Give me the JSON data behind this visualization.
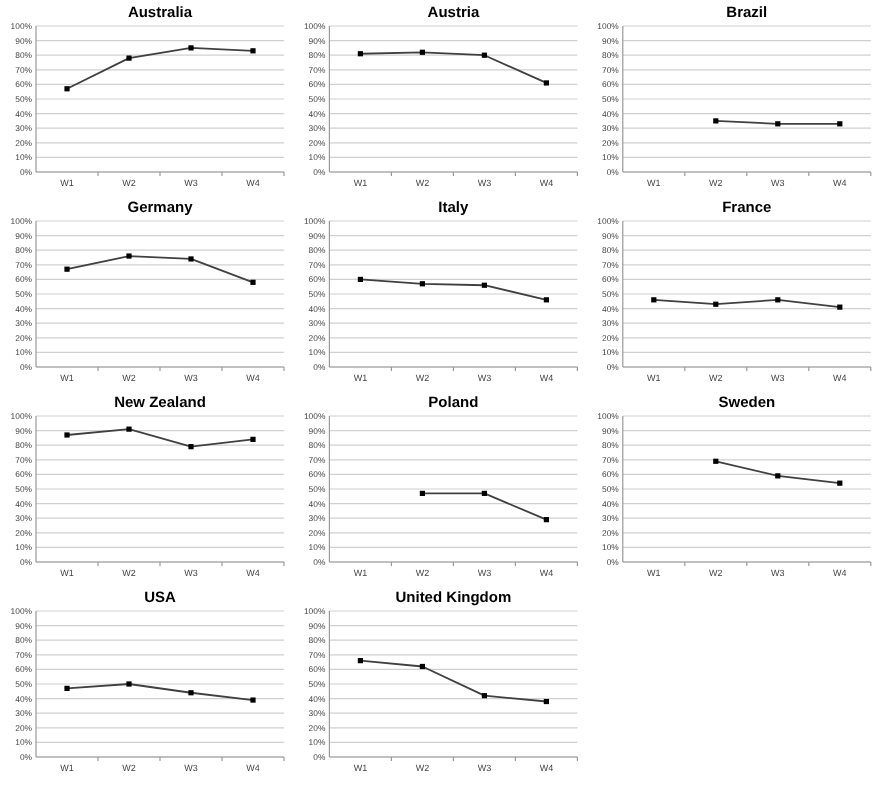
{
  "chart_data": [
    {
      "type": "line",
      "title": "Australia",
      "categories": [
        "W1",
        "W2",
        "W3",
        "W4"
      ],
      "series": [
        {
          "color": "#404040",
          "values": [
            57,
            78,
            85,
            83
          ]
        }
      ],
      "ylim": [
        0,
        100
      ],
      "yticks": [
        {
          "value": 0,
          "label": "0%"
        },
        {
          "value": 10,
          "label": "10%"
        },
        {
          "value": 20,
          "label": "20%"
        },
        {
          "value": 30,
          "label": "30%"
        },
        {
          "value": 40,
          "label": "40%"
        },
        {
          "value": 50,
          "label": "50%"
        },
        {
          "value": 60,
          "label": "60%"
        },
        {
          "value": 70,
          "label": "70%"
        },
        {
          "value": 80,
          "label": "80%"
        },
        {
          "value": 90,
          "label": "90%"
        },
        {
          "value": 100,
          "label": "100%"
        }
      ],
      "grid": "y",
      "marker": "square"
    },
    {
      "type": "line",
      "title": "Austria",
      "categories": [
        "W1",
        "W2",
        "W3",
        "W4"
      ],
      "series": [
        {
          "color": "#404040",
          "values": [
            81,
            82,
            80,
            61
          ]
        }
      ],
      "ylim": [
        0,
        100
      ],
      "yticks": [
        {
          "value": 0,
          "label": "0%"
        },
        {
          "value": 10,
          "label": "10%"
        },
        {
          "value": 20,
          "label": "20%"
        },
        {
          "value": 30,
          "label": "30%"
        },
        {
          "value": 40,
          "label": "40%"
        },
        {
          "value": 50,
          "label": "50%"
        },
        {
          "value": 60,
          "label": "60%"
        },
        {
          "value": 70,
          "label": "70%"
        },
        {
          "value": 80,
          "label": "80%"
        },
        {
          "value": 90,
          "label": "90%"
        },
        {
          "value": 100,
          "label": "100%"
        }
      ],
      "grid": "y",
      "marker": "square"
    },
    {
      "type": "line",
      "title": "Brazil",
      "categories": [
        "W1",
        "W2",
        "W3",
        "W4"
      ],
      "series": [
        {
          "color": "#404040",
          "values": [
            null,
            35,
            33,
            33
          ]
        }
      ],
      "ylim": [
        0,
        100
      ],
      "yticks": [
        {
          "value": 0,
          "label": "0%"
        },
        {
          "value": 10,
          "label": "10%"
        },
        {
          "value": 20,
          "label": "20%"
        },
        {
          "value": 30,
          "label": "30%"
        },
        {
          "value": 40,
          "label": "40%"
        },
        {
          "value": 50,
          "label": "50%"
        },
        {
          "value": 60,
          "label": "60%"
        },
        {
          "value": 70,
          "label": "70%"
        },
        {
          "value": 80,
          "label": "80%"
        },
        {
          "value": 90,
          "label": "90%"
        },
        {
          "value": 100,
          "label": "100%"
        }
      ],
      "grid": "y",
      "marker": "square"
    },
    {
      "type": "line",
      "title": "Germany",
      "categories": [
        "W1",
        "W2",
        "W3",
        "W4"
      ],
      "series": [
        {
          "color": "#404040",
          "values": [
            67,
            76,
            74,
            58
          ]
        }
      ],
      "ylim": [
        0,
        100
      ],
      "yticks": [
        {
          "value": 0,
          "label": "0%"
        },
        {
          "value": 10,
          "label": "10%"
        },
        {
          "value": 20,
          "label": "20%"
        },
        {
          "value": 30,
          "label": "30%"
        },
        {
          "value": 40,
          "label": "40%"
        },
        {
          "value": 50,
          "label": "50%"
        },
        {
          "value": 60,
          "label": "60%"
        },
        {
          "value": 70,
          "label": "70%"
        },
        {
          "value": 80,
          "label": "80%"
        },
        {
          "value": 90,
          "label": "90%"
        },
        {
          "value": 100,
          "label": "100%"
        }
      ],
      "grid": "y",
      "marker": "square"
    },
    {
      "type": "line",
      "title": "Italy",
      "categories": [
        "W1",
        "W2",
        "W3",
        "W4"
      ],
      "series": [
        {
          "color": "#404040",
          "values": [
            60,
            57,
            56,
            46
          ]
        }
      ],
      "ylim": [
        0,
        100
      ],
      "yticks": [
        {
          "value": 0,
          "label": "0%"
        },
        {
          "value": 10,
          "label": "10%"
        },
        {
          "value": 20,
          "label": "20%"
        },
        {
          "value": 30,
          "label": "30%"
        },
        {
          "value": 40,
          "label": "40%"
        },
        {
          "value": 50,
          "label": "50%"
        },
        {
          "value": 60,
          "label": "60%"
        },
        {
          "value": 70,
          "label": "70%"
        },
        {
          "value": 80,
          "label": "80%"
        },
        {
          "value": 90,
          "label": "90%"
        },
        {
          "value": 100,
          "label": "100%"
        }
      ],
      "grid": "y",
      "marker": "square"
    },
    {
      "type": "line",
      "title": "France",
      "categories": [
        "W1",
        "W2",
        "W3",
        "W4"
      ],
      "series": [
        {
          "color": "#404040",
          "values": [
            46,
            43,
            46,
            41
          ]
        }
      ],
      "ylim": [
        0,
        100
      ],
      "yticks": [
        {
          "value": 0,
          "label": "0%"
        },
        {
          "value": 10,
          "label": "10%"
        },
        {
          "value": 20,
          "label": "20%"
        },
        {
          "value": 30,
          "label": "30%"
        },
        {
          "value": 40,
          "label": "40%"
        },
        {
          "value": 50,
          "label": "50%"
        },
        {
          "value": 60,
          "label": "60%"
        },
        {
          "value": 70,
          "label": "70%"
        },
        {
          "value": 80,
          "label": "80%"
        },
        {
          "value": 90,
          "label": "90%"
        },
        {
          "value": 100,
          "label": "100%"
        }
      ],
      "grid": "y",
      "marker": "square"
    },
    {
      "type": "line",
      "title": "New Zealand",
      "categories": [
        "W1",
        "W2",
        "W3",
        "W4"
      ],
      "series": [
        {
          "color": "#404040",
          "values": [
            87,
            91,
            79,
            84
          ]
        }
      ],
      "ylim": [
        0,
        100
      ],
      "yticks": [
        {
          "value": 0,
          "label": "0%"
        },
        {
          "value": 10,
          "label": "10%"
        },
        {
          "value": 20,
          "label": "20%"
        },
        {
          "value": 30,
          "label": "30%"
        },
        {
          "value": 40,
          "label": "40%"
        },
        {
          "value": 50,
          "label": "50%"
        },
        {
          "value": 60,
          "label": "60%"
        },
        {
          "value": 70,
          "label": "70%"
        },
        {
          "value": 80,
          "label": "80%"
        },
        {
          "value": 90,
          "label": "90%"
        },
        {
          "value": 100,
          "label": "100%"
        }
      ],
      "grid": "y",
      "marker": "square"
    },
    {
      "type": "line",
      "title": "Poland",
      "categories": [
        "W1",
        "W2",
        "W3",
        "W4"
      ],
      "series": [
        {
          "color": "#404040",
          "values": [
            null,
            47,
            47,
            29
          ]
        }
      ],
      "ylim": [
        0,
        100
      ],
      "yticks": [
        {
          "value": 0,
          "label": "0%"
        },
        {
          "value": 10,
          "label": "10%"
        },
        {
          "value": 20,
          "label": "20%"
        },
        {
          "value": 30,
          "label": "30%"
        },
        {
          "value": 40,
          "label": "40%"
        },
        {
          "value": 50,
          "label": "50%"
        },
        {
          "value": 60,
          "label": "60%"
        },
        {
          "value": 70,
          "label": "70%"
        },
        {
          "value": 80,
          "label": "80%"
        },
        {
          "value": 90,
          "label": "90%"
        },
        {
          "value": 100,
          "label": "100%"
        }
      ],
      "grid": "y",
      "marker": "square"
    },
    {
      "type": "line",
      "title": "Sweden",
      "categories": [
        "W1",
        "W2",
        "W3",
        "W4"
      ],
      "series": [
        {
          "color": "#404040",
          "values": [
            null,
            69,
            59,
            54
          ]
        }
      ],
      "ylim": [
        0,
        100
      ],
      "yticks": [
        {
          "value": 0,
          "label": "0%"
        },
        {
          "value": 10,
          "label": "10%"
        },
        {
          "value": 20,
          "label": "20%"
        },
        {
          "value": 30,
          "label": "30%"
        },
        {
          "value": 40,
          "label": "40%"
        },
        {
          "value": 50,
          "label": "50%"
        },
        {
          "value": 60,
          "label": "60%"
        },
        {
          "value": 70,
          "label": "70%"
        },
        {
          "value": 80,
          "label": "80%"
        },
        {
          "value": 90,
          "label": "90%"
        },
        {
          "value": 100,
          "label": "100%"
        }
      ],
      "grid": "y",
      "marker": "square"
    },
    {
      "type": "line",
      "title": "USA",
      "categories": [
        "W1",
        "W2",
        "W3",
        "W4"
      ],
      "series": [
        {
          "color": "#404040",
          "values": [
            47,
            50,
            44,
            39
          ]
        }
      ],
      "ylim": [
        0,
        100
      ],
      "yticks": [
        {
          "value": 0,
          "label": "0%"
        },
        {
          "value": 10,
          "label": "10%"
        },
        {
          "value": 20,
          "label": "20%"
        },
        {
          "value": 30,
          "label": "30%"
        },
        {
          "value": 40,
          "label": "40%"
        },
        {
          "value": 50,
          "label": "50%"
        },
        {
          "value": 60,
          "label": "60%"
        },
        {
          "value": 70,
          "label": "70%"
        },
        {
          "value": 80,
          "label": "80%"
        },
        {
          "value": 90,
          "label": "90%"
        },
        {
          "value": 100,
          "label": "100%"
        }
      ],
      "grid": "y",
      "marker": "square"
    },
    {
      "type": "line",
      "title": "United Kingdom",
      "categories": [
        "W1",
        "W2",
        "W3",
        "W4"
      ],
      "series": [
        {
          "color": "#404040",
          "values": [
            66,
            62,
            42,
            38
          ]
        }
      ],
      "ylim": [
        0,
        100
      ],
      "yticks": [
        {
          "value": 0,
          "label": "0%"
        },
        {
          "value": 10,
          "label": "10%"
        },
        {
          "value": 20,
          "label": "20%"
        },
        {
          "value": 30,
          "label": "30%"
        },
        {
          "value": 40,
          "label": "40%"
        },
        {
          "value": 50,
          "label": "50%"
        },
        {
          "value": 60,
          "label": "60%"
        },
        {
          "value": 70,
          "label": "70%"
        },
        {
          "value": 80,
          "label": "80%"
        },
        {
          "value": 90,
          "label": "90%"
        },
        {
          "value": 100,
          "label": "100%"
        }
      ],
      "grid": "y",
      "marker": "square"
    }
  ]
}
